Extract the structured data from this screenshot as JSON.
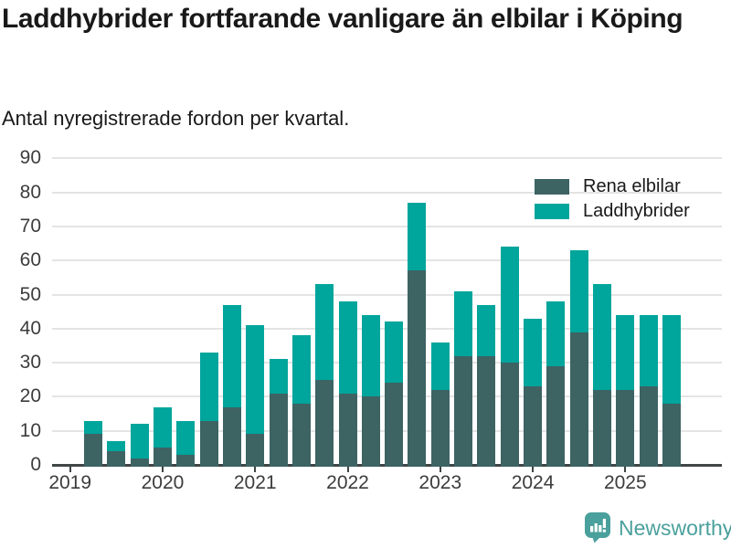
{
  "title": "Laddhybrider fortfarande vanligare än elbilar i Köping",
  "subtitle": "Antal nyregistrerade fordon per kvartal.",
  "legend": {
    "items": [
      {
        "label": "Rena elbilar",
        "color": "#3d6363"
      },
      {
        "label": "Laddhybrider",
        "color": "#00a59c"
      }
    ]
  },
  "footer": {
    "brand": "Newsworthy",
    "brand_color": "#4aa09c",
    "logo_icon": "bar-chart-speech-bubble-icon"
  },
  "colors": {
    "elbilar": "#3d6363",
    "laddhybrider": "#00a59c",
    "axis": "#3f4545",
    "gridline": "#e4e4e4",
    "tick_text": "#3c3c3c",
    "text": "#191919"
  },
  "chart_data": {
    "type": "bar",
    "stacked": true,
    "title": "Laddhybrider fortfarande vanligare än elbilar i Köping",
    "subtitle": "Antal nyregistrerade fordon per kvartal.",
    "xlabel": "",
    "ylabel": "",
    "ylim": [
      0,
      90
    ],
    "yticks": [
      0,
      10,
      20,
      30,
      40,
      50,
      60,
      70,
      80,
      90
    ],
    "xticks": [
      2019,
      2020,
      2021,
      2022,
      2023,
      2024,
      2025
    ],
    "grid": "horizontal",
    "legend_position": "top-right-inside",
    "categories": [
      "2019 Q2",
      "2019 Q3",
      "2019 Q4",
      "2020 Q1",
      "2020 Q2",
      "2020 Q3",
      "2020 Q4",
      "2021 Q1",
      "2021 Q2",
      "2021 Q3",
      "2021 Q4",
      "2022 Q1",
      "2022 Q2",
      "2022 Q3",
      "2022 Q4",
      "2023 Q1",
      "2023 Q2",
      "2023 Q3",
      "2023 Q4",
      "2024 Q1",
      "2024 Q2",
      "2024 Q3",
      "2024 Q4",
      "2025 Q1",
      "2025 Q2",
      "2025 Q3"
    ],
    "series": [
      {
        "name": "Rena elbilar",
        "color": "#3d6363",
        "values": [
          9,
          4,
          2,
          5,
          3,
          13,
          17,
          9,
          21,
          18,
          25,
          21,
          20,
          24,
          57,
          22,
          32,
          32,
          30,
          23,
          29,
          39,
          22,
          22,
          23,
          18
        ]
      },
      {
        "name": "Laddhybrider",
        "color": "#00a59c",
        "values": [
          4,
          3,
          10,
          12,
          10,
          20,
          30,
          32,
          10,
          20,
          28,
          27,
          24,
          18,
          20,
          14,
          19,
          15,
          34,
          20,
          19,
          24,
          31,
          22,
          21,
          26
        ]
      }
    ],
    "totals": [
      13,
      7,
      12,
      17,
      13,
      33,
      47,
      41,
      31,
      38,
      53,
      48,
      44,
      42,
      77,
      36,
      51,
      47,
      64,
      43,
      48,
      63,
      53,
      44,
      44,
      44
    ]
  }
}
